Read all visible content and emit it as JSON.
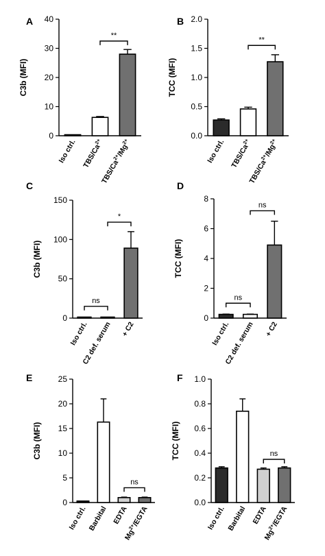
{
  "chart_data": [
    {
      "panel": "A",
      "type": "bar",
      "ylabel": "C3b (MFI)",
      "ylim": [
        0,
        40
      ],
      "yticks": [
        "0",
        "10",
        "20",
        "30",
        "40"
      ],
      "categories": [
        "Iso ctrl.",
        "TBS/Ca2+",
        "TBS/Ca2+/Mg2+"
      ],
      "values": [
        0.3,
        6.3,
        28.0
      ],
      "errors": [
        0,
        0.3,
        1.6
      ],
      "fills": [
        "#2b2b2b",
        "#ffffff",
        "#707070"
      ],
      "brackets": [
        {
          "from": 1,
          "to": 2,
          "label": "**",
          "y": 32.5
        }
      ]
    },
    {
      "panel": "B",
      "type": "bar",
      "ylabel": "TCC (MFI)",
      "ylim": [
        0,
        2.0
      ],
      "yticks": [
        "0.0",
        "0.5",
        "1.0",
        "1.5",
        "2.0"
      ],
      "categories": [
        "Iso ctrl.",
        "TBS/Ca2+",
        "TBS/Ca2+/Mg2+"
      ],
      "values": [
        0.27,
        0.46,
        1.27
      ],
      "errors": [
        0.02,
        0.03,
        0.12
      ],
      "fills": [
        "#2b2b2b",
        "#ffffff",
        "#707070"
      ],
      "brackets": [
        {
          "from": 1,
          "to": 2,
          "label": "**",
          "y": 1.55
        }
      ]
    },
    {
      "panel": "C",
      "type": "bar",
      "ylabel": "C3b (MFI)",
      "ylim": [
        0,
        150
      ],
      "yticks": [
        "0",
        "50",
        "100",
        "150"
      ],
      "categories": [
        "Iso ctrl.",
        "C2 def. serum",
        "+ C2"
      ],
      "values": [
        0.5,
        1.0,
        89.0
      ],
      "errors": [
        0,
        0,
        21
      ],
      "fills": [
        "#2b2b2b",
        "#ffffff",
        "#707070"
      ],
      "brackets": [
        {
          "from": 0,
          "to": 1,
          "label": "ns",
          "y": 15
        },
        {
          "from": 1,
          "to": 2,
          "label": "*",
          "y": 122
        }
      ]
    },
    {
      "panel": "D",
      "type": "bar",
      "ylabel": "TCC (MFI)",
      "ylim": [
        0,
        8
      ],
      "yticks": [
        "0",
        "2",
        "4",
        "6",
        "8"
      ],
      "categories": [
        "Iso ctrl.",
        "C2 def. serum",
        "+ C2"
      ],
      "values": [
        0.25,
        0.25,
        4.9
      ],
      "errors": [
        0.02,
        0.02,
        1.6
      ],
      "fills": [
        "#2b2b2b",
        "#ffffff",
        "#707070"
      ],
      "brackets": [
        {
          "from": 0,
          "to": 1,
          "label": "ns",
          "y": 1.0
        },
        {
          "from": 1,
          "to": 2,
          "label": "ns",
          "y": 7.2
        }
      ]
    },
    {
      "panel": "E",
      "type": "bar",
      "ylabel": "C3b (MFI)",
      "ylim": [
        0,
        25
      ],
      "yticks": [
        "0",
        "5",
        "10",
        "15",
        "20",
        "25"
      ],
      "categories": [
        "Iso ctrl.",
        "Barbital",
        "EDTA",
        "Mg2+/EGTA"
      ],
      "values": [
        0.3,
        16.3,
        1.0,
        1.0
      ],
      "errors": [
        0,
        4.7,
        0.1,
        0.1
      ],
      "fills": [
        "#2b2b2b",
        "#ffffff",
        "#d0d0d0",
        "#707070"
      ],
      "brackets": [
        {
          "from": 2,
          "to": 3,
          "label": "ns",
          "y": 3.0
        }
      ]
    },
    {
      "panel": "F",
      "type": "bar",
      "ylabel": "TCC (MFI)",
      "ylim": [
        0,
        1.0
      ],
      "yticks": [
        "0.0",
        "0.2",
        "0.4",
        "0.6",
        "0.8",
        "1.0"
      ],
      "categories": [
        "Iso ctrl.",
        "Barbital",
        "EDTA",
        "Mg2+/EGTA"
      ],
      "values": [
        0.28,
        0.74,
        0.27,
        0.28
      ],
      "errors": [
        0.01,
        0.1,
        0.01,
        0.01
      ],
      "fills": [
        "#2b2b2b",
        "#ffffff",
        "#d0d0d0",
        "#707070"
      ],
      "brackets": [
        {
          "from": 2,
          "to": 3,
          "label": "ns",
          "y": 0.35
        }
      ]
    }
  ]
}
